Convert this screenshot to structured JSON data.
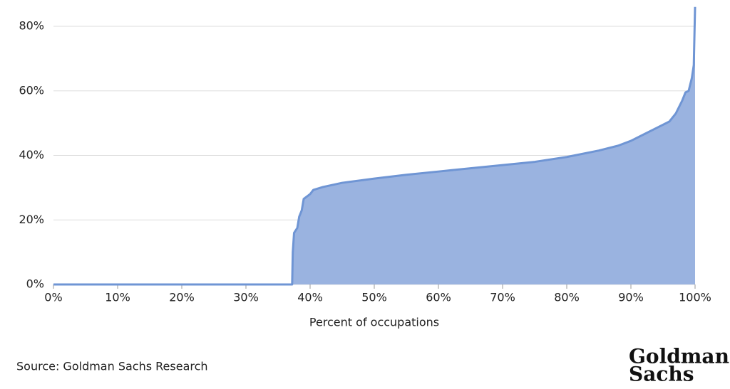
{
  "chart_data": {
    "type": "area",
    "x_label": "Percent of occupations",
    "source": "Source: Goldman Sachs Research",
    "brand": [
      "Goldman",
      "Sachs"
    ],
    "x": [
      0,
      37.2,
      37.3,
      37.5,
      38,
      38.3,
      38.7,
      39,
      40,
      40.5,
      42,
      45,
      50,
      55,
      60,
      65,
      70,
      75,
      80,
      85,
      88,
      90,
      92,
      94,
      96,
      97,
      98,
      98.5,
      99,
      99.5,
      99.8,
      100
    ],
    "values": [
      0,
      0,
      10,
      16,
      17.5,
      21,
      23,
      26.5,
      28,
      29.3,
      30.2,
      31.5,
      32.8,
      34,
      35,
      36,
      37,
      38,
      39.5,
      41.5,
      43,
      44.5,
      46.5,
      48.5,
      50.5,
      53,
      57,
      59.5,
      60,
      64,
      68,
      86
    ],
    "color": "#6f95d4",
    "fill_color": "#9ab3e0",
    "xlim": [
      0,
      100
    ],
    "ylim": [
      0,
      88
    ],
    "xticks": [
      {
        "value": 0,
        "label": "0%"
      },
      {
        "value": 10,
        "label": "10%"
      },
      {
        "value": 20,
        "label": "20%"
      },
      {
        "value": 30,
        "label": "30%"
      },
      {
        "value": 40,
        "label": "40%"
      },
      {
        "value": 50,
        "label": "50%"
      },
      {
        "value": 60,
        "label": "60%"
      },
      {
        "value": 70,
        "label": "70%"
      },
      {
        "value": 80,
        "label": "80%"
      },
      {
        "value": 90,
        "label": "90%"
      },
      {
        "value": 100,
        "label": "100%"
      }
    ],
    "yticks": [
      {
        "value": 0,
        "label": "0%"
      },
      {
        "value": 20,
        "label": "20%"
      },
      {
        "value": 40,
        "label": "40%"
      },
      {
        "value": 60,
        "label": "60%"
      },
      {
        "value": 80,
        "label": "80%"
      }
    ],
    "grid": true
  }
}
